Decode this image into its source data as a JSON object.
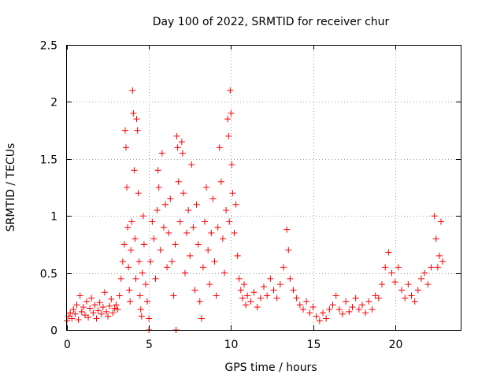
{
  "chart_data": {
    "type": "scatter",
    "title": "Day 100 of 2022, SRMTID for receiver chur",
    "xlabel": "GPS time / hours",
    "ylabel": "SRMTID / TECUs",
    "xlim": [
      0,
      24
    ],
    "ylim": [
      0,
      2.5
    ],
    "x_ticks": [
      0,
      5,
      10,
      15,
      20
    ],
    "x_tick_labels": [
      "0",
      "5",
      "10",
      "15",
      "20"
    ],
    "y_ticks": [
      0,
      0.5,
      1,
      1.5,
      2,
      2.5
    ],
    "y_tick_labels": [
      "0",
      "0.5",
      "1",
      "1.5",
      "2",
      "2.5"
    ],
    "grid": true,
    "marker": "+",
    "color": "#ff0000",
    "series": [
      {
        "name": "SRMTID",
        "points": [
          [
            0.0,
            0.08
          ],
          [
            0.1,
            0.12
          ],
          [
            0.2,
            0.15
          ],
          [
            0.3,
            0.1
          ],
          [
            0.4,
            0.18
          ],
          [
            0.5,
            0.14
          ],
          [
            0.6,
            0.22
          ],
          [
            0.7,
            0.09
          ],
          [
            0.8,
            0.3
          ],
          [
            0.9,
            0.16
          ],
          [
            1.0,
            0.2
          ],
          [
            1.1,
            0.13
          ],
          [
            1.2,
            0.25
          ],
          [
            1.3,
            0.11
          ],
          [
            1.4,
            0.19
          ],
          [
            1.5,
            0.28
          ],
          [
            1.6,
            0.15
          ],
          [
            1.7,
            0.22
          ],
          [
            1.8,
            0.1
          ],
          [
            1.9,
            0.17
          ],
          [
            2.0,
            0.24
          ],
          [
            2.1,
            0.14
          ],
          [
            2.2,
            0.2
          ],
          [
            2.3,
            0.33
          ],
          [
            2.4,
            0.16
          ],
          [
            2.5,
            0.12
          ],
          [
            2.6,
            0.21
          ],
          [
            2.7,
            0.27
          ],
          [
            2.8,
            0.15
          ],
          [
            2.9,
            0.19
          ],
          [
            3.0,
            0.22
          ],
          [
            3.1,
            0.18
          ],
          [
            3.2,
            0.3
          ],
          [
            3.3,
            0.45
          ],
          [
            3.4,
            0.6
          ],
          [
            3.5,
            0.75
          ],
          [
            3.55,
            1.75
          ],
          [
            3.6,
            1.6
          ],
          [
            3.65,
            1.25
          ],
          [
            3.7,
            0.9
          ],
          [
            3.75,
            0.55
          ],
          [
            3.8,
            0.35
          ],
          [
            3.85,
            0.25
          ],
          [
            3.9,
            0.7
          ],
          [
            3.95,
            0.95
          ],
          [
            4.0,
            2.1
          ],
          [
            4.05,
            1.9
          ],
          [
            4.1,
            1.4
          ],
          [
            4.15,
            0.8
          ],
          [
            4.2,
            0.45
          ],
          [
            4.25,
            1.85
          ],
          [
            4.3,
            1.75
          ],
          [
            4.35,
            1.2
          ],
          [
            4.4,
            0.6
          ],
          [
            4.45,
            0.3
          ],
          [
            4.5,
            0.18
          ],
          [
            4.55,
            0.12
          ],
          [
            4.6,
            0.5
          ],
          [
            4.65,
            1.0
          ],
          [
            4.7,
            0.75
          ],
          [
            4.8,
            0.4
          ],
          [
            4.9,
            0.25
          ],
          [
            5.0,
            0.1
          ],
          [
            5.0,
            0.0
          ],
          [
            5.1,
            0.6
          ],
          [
            5.2,
            0.95
          ],
          [
            5.3,
            0.8
          ],
          [
            5.4,
            0.45
          ],
          [
            5.5,
            1.05
          ],
          [
            5.55,
            1.4
          ],
          [
            5.6,
            1.25
          ],
          [
            5.7,
            0.7
          ],
          [
            5.8,
            1.55
          ],
          [
            5.9,
            0.9
          ],
          [
            6.0,
            1.1
          ],
          [
            6.1,
            0.55
          ],
          [
            6.2,
            0.85
          ],
          [
            6.3,
            1.15
          ],
          [
            6.4,
            0.6
          ],
          [
            6.5,
            0.3
          ],
          [
            6.6,
            0.75
          ],
          [
            6.65,
            0.0
          ],
          [
            6.7,
            1.7
          ],
          [
            6.75,
            1.6
          ],
          [
            6.8,
            1.3
          ],
          [
            6.9,
            0.95
          ],
          [
            7.0,
            1.65
          ],
          [
            7.05,
            1.55
          ],
          [
            7.1,
            1.2
          ],
          [
            7.2,
            0.5
          ],
          [
            7.3,
            0.85
          ],
          [
            7.4,
            1.05
          ],
          [
            7.5,
            0.65
          ],
          [
            7.6,
            1.45
          ],
          [
            7.7,
            0.9
          ],
          [
            7.8,
            0.35
          ],
          [
            7.9,
            1.1
          ],
          [
            8.0,
            0.75
          ],
          [
            8.1,
            0.25
          ],
          [
            8.2,
            0.1
          ],
          [
            8.3,
            0.55
          ],
          [
            8.4,
            0.95
          ],
          [
            8.5,
            1.25
          ],
          [
            8.6,
            0.7
          ],
          [
            8.7,
            0.4
          ],
          [
            8.8,
            0.85
          ],
          [
            8.9,
            1.15
          ],
          [
            9.0,
            0.6
          ],
          [
            9.1,
            0.3
          ],
          [
            9.2,
            0.9
          ],
          [
            9.3,
            1.6
          ],
          [
            9.4,
            1.3
          ],
          [
            9.5,
            0.8
          ],
          [
            9.6,
            0.5
          ],
          [
            9.7,
            1.05
          ],
          [
            9.8,
            1.85
          ],
          [
            9.85,
            1.7
          ],
          [
            9.9,
            0.95
          ],
          [
            9.95,
            2.1
          ],
          [
            10.0,
            1.9
          ],
          [
            10.05,
            1.45
          ],
          [
            10.1,
            1.2
          ],
          [
            10.2,
            0.85
          ],
          [
            10.3,
            1.1
          ],
          [
            10.4,
            0.65
          ],
          [
            10.5,
            0.45
          ],
          [
            10.6,
            0.35
          ],
          [
            10.7,
            0.28
          ],
          [
            10.8,
            0.4
          ],
          [
            10.9,
            0.22
          ],
          [
            11.0,
            0.3
          ],
          [
            11.2,
            0.25
          ],
          [
            11.4,
            0.33
          ],
          [
            11.6,
            0.2
          ],
          [
            11.8,
            0.28
          ],
          [
            12.0,
            0.38
          ],
          [
            12.2,
            0.3
          ],
          [
            12.4,
            0.45
          ],
          [
            12.6,
            0.35
          ],
          [
            12.8,
            0.28
          ],
          [
            13.0,
            0.4
          ],
          [
            13.2,
            0.55
          ],
          [
            13.4,
            0.88
          ],
          [
            13.5,
            0.7
          ],
          [
            13.6,
            0.45
          ],
          [
            13.8,
            0.35
          ],
          [
            14.0,
            0.28
          ],
          [
            14.2,
            0.22
          ],
          [
            14.4,
            0.18
          ],
          [
            14.6,
            0.25
          ],
          [
            14.8,
            0.15
          ],
          [
            15.0,
            0.2
          ],
          [
            15.2,
            0.12
          ],
          [
            15.4,
            0.08
          ],
          [
            15.6,
            0.15
          ],
          [
            15.8,
            0.1
          ],
          [
            16.0,
            0.18
          ],
          [
            16.2,
            0.22
          ],
          [
            16.4,
            0.3
          ],
          [
            16.6,
            0.18
          ],
          [
            16.8,
            0.14
          ],
          [
            17.0,
            0.25
          ],
          [
            17.2,
            0.16
          ],
          [
            17.4,
            0.2
          ],
          [
            17.6,
            0.28
          ],
          [
            17.8,
            0.18
          ],
          [
            18.0,
            0.22
          ],
          [
            18.2,
            0.15
          ],
          [
            18.4,
            0.25
          ],
          [
            18.6,
            0.18
          ],
          [
            18.8,
            0.3
          ],
          [
            19.0,
            0.28
          ],
          [
            19.2,
            0.4
          ],
          [
            19.4,
            0.55
          ],
          [
            19.6,
            0.68
          ],
          [
            19.8,
            0.5
          ],
          [
            20.0,
            0.42
          ],
          [
            20.2,
            0.55
          ],
          [
            20.4,
            0.35
          ],
          [
            20.6,
            0.28
          ],
          [
            20.8,
            0.4
          ],
          [
            21.0,
            0.3
          ],
          [
            21.2,
            0.25
          ],
          [
            21.4,
            0.35
          ],
          [
            21.6,
            0.45
          ],
          [
            21.8,
            0.5
          ],
          [
            22.0,
            0.4
          ],
          [
            22.2,
            0.55
          ],
          [
            22.4,
            1.0
          ],
          [
            22.5,
            0.8
          ],
          [
            22.6,
            0.55
          ],
          [
            22.7,
            0.65
          ],
          [
            22.8,
            0.95
          ],
          [
            22.9,
            0.6
          ]
        ]
      }
    ]
  }
}
